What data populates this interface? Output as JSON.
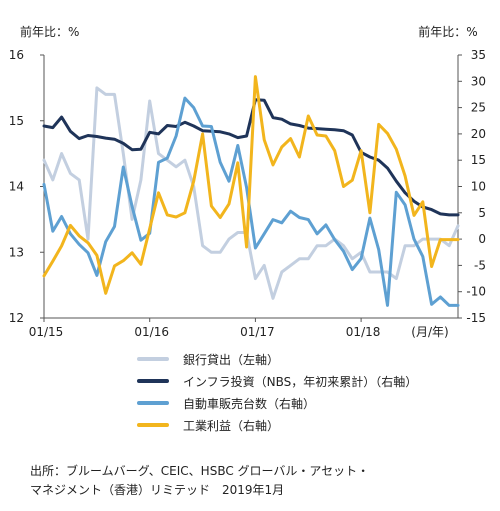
{
  "chart_data": {
    "type": "line",
    "left_axis_label": "前年比：%",
    "right_axis_label": "前年比：%",
    "x_unit_label": "(月/年)",
    "x_ticks": [
      "01/15",
      "01/16",
      "01/17",
      "01/18"
    ],
    "left_ylim": [
      12,
      16
    ],
    "left_yticks": [
      12,
      13,
      14,
      15,
      16
    ],
    "right_ylim": [
      -15,
      35
    ],
    "right_yticks": [
      -15,
      -10,
      -5,
      0,
      5,
      10,
      15,
      20,
      25,
      30,
      35
    ],
    "x_range": [
      0,
      47
    ],
    "colors": {
      "bank_loans": "#c3cfe0",
      "infrastructure": "#1f3459",
      "auto_sales": "#5ea0d2",
      "industrial_profits": "#f2b51d"
    },
    "series": [
      {
        "key": "bank_loans",
        "name": "銀行貸出（左軸）",
        "axis": "left",
        "color": "#c3cfe0",
        "x": [
          0,
          1,
          2,
          3,
          4,
          5,
          6,
          7,
          8,
          9,
          10,
          11,
          12,
          13,
          14,
          15,
          16,
          17,
          18,
          19,
          20,
          21,
          22,
          23,
          24,
          25,
          26,
          27,
          28,
          29,
          30,
          31,
          32,
          33,
          34,
          35,
          36,
          37,
          38,
          39,
          40,
          41,
          42,
          43,
          44,
          45,
          46,
          47
        ],
        "values": [
          14.4,
          14.1,
          14.5,
          14.2,
          14.1,
          13.2,
          15.5,
          15.4,
          15.4,
          14.5,
          13.5,
          14.1,
          15.3,
          14.5,
          14.4,
          14.3,
          14.4,
          14.0,
          13.1,
          13.0,
          13.0,
          13.2,
          13.3,
          13.3,
          12.6,
          12.8,
          12.3,
          12.7,
          12.8,
          12.9,
          12.9,
          13.1,
          13.1,
          13.2,
          13.1,
          12.9,
          13.0,
          12.7,
          12.7,
          12.7,
          12.6,
          13.1,
          13.1,
          13.2,
          13.2,
          13.2,
          13.1,
          13.4
        ]
      },
      {
        "key": "infrastructure",
        "name": "インフラ投資（NBS，年初来累計）（右軸）",
        "axis": "right",
        "color": "#1f3459",
        "x": [
          0,
          1,
          2,
          3,
          4,
          5,
          6,
          7,
          8,
          9,
          10,
          11,
          12,
          13,
          14,
          15,
          16,
          17,
          18,
          19,
          20,
          21,
          22,
          23,
          24,
          25,
          26,
          27,
          28,
          29,
          30,
          31,
          32,
          33,
          34,
          35,
          36,
          37,
          38,
          39,
          40,
          41,
          42,
          43,
          44,
          45,
          46,
          47
        ],
        "values": [
          21.5,
          21.2,
          23.2,
          20.5,
          19.1,
          19.7,
          19.5,
          19.2,
          19.0,
          18.2,
          17.0,
          17.1,
          20.3,
          20.0,
          21.6,
          21.4,
          22.2,
          21.5,
          20.6,
          20.5,
          20.4,
          20.0,
          19.3,
          19.6,
          26.5,
          26.4,
          23.1,
          22.8,
          21.9,
          21.6,
          21.1,
          21.0,
          20.9,
          20.8,
          20.6,
          19.8,
          16.5,
          15.6,
          15.0,
          13.5,
          11.0,
          8.8,
          7.2,
          6.1,
          5.6,
          4.8,
          4.6,
          4.6
        ]
      },
      {
        "key": "auto_sales",
        "name": "自動車販売台数（右軸）",
        "axis": "right",
        "color": "#5ea0d2",
        "x": [
          0,
          1,
          2,
          3,
          4,
          5,
          6,
          7,
          8,
          9,
          10,
          11,
          12,
          13,
          14,
          15,
          16,
          17,
          18,
          19,
          20,
          21,
          22,
          23,
          24,
          25,
          26,
          27,
          28,
          29,
          30,
          31,
          32,
          33,
          34,
          35,
          36,
          37,
          38,
          39,
          40,
          41,
          42,
          43,
          44,
          45,
          46,
          47
        ],
        "values": [
          10.4,
          1.5,
          4.3,
          1.0,
          -1.0,
          -2.6,
          -6.9,
          -0.5,
          2.4,
          13.7,
          6.2,
          -0.2,
          1.1,
          14.6,
          15.4,
          19.6,
          26.8,
          25.0,
          21.5,
          21.4,
          14.6,
          11.0,
          17.8,
          9.8,
          -1.7,
          1.0,
          3.7,
          3.1,
          5.3,
          4.1,
          3.7,
          1.0,
          2.7,
          -0.1,
          -2.3,
          -5.8,
          -3.7,
          4.0,
          -2.0,
          -12.6,
          8.9,
          6.5,
          0.0,
          -3.3,
          -12.4,
          -11.0,
          -12.6,
          -12.6
        ]
      },
      {
        "key": "industrial_profits",
        "name": "工業利益（右軸）",
        "axis": "right",
        "color": "#f2b51d",
        "x": [
          0,
          1,
          2,
          3,
          4,
          5,
          6,
          7,
          8,
          9,
          10,
          11,
          12,
          13,
          14,
          15,
          16,
          17,
          18,
          19,
          20,
          21,
          22,
          23,
          24,
          25,
          26,
          27,
          28,
          29,
          30,
          31,
          32,
          33,
          34,
          35,
          36,
          37,
          38,
          39,
          40,
          41,
          42,
          43,
          44,
          45,
          46,
          47
        ],
        "values": [
          -7.0,
          -4.2,
          -1.3,
          2.6,
          0.6,
          -0.7,
          -3.1,
          -10.3,
          -5.1,
          -4.1,
          -2.6,
          -4.8,
          2.0,
          8.8,
          4.6,
          4.2,
          5.0,
          11.0,
          20.0,
          6.3,
          4.1,
          6.7,
          14.5,
          -1.5,
          30.9,
          18.9,
          14.1,
          17.5,
          19.1,
          15.6,
          23.4,
          19.8,
          19.6,
          16.8,
          10.0,
          11.2,
          16.8,
          5.0,
          21.8,
          20.1,
          17.1,
          12.0,
          4.5,
          7.1,
          -5.2,
          -0.1,
          -0.1,
          -0.1
        ]
      }
    ]
  },
  "source": {
    "line1": "出所：ブルームバーグ、CEIC、HSBC グローバル・アセット・",
    "line2": "マネジメント（香港）リミテッド　2019年1月"
  }
}
